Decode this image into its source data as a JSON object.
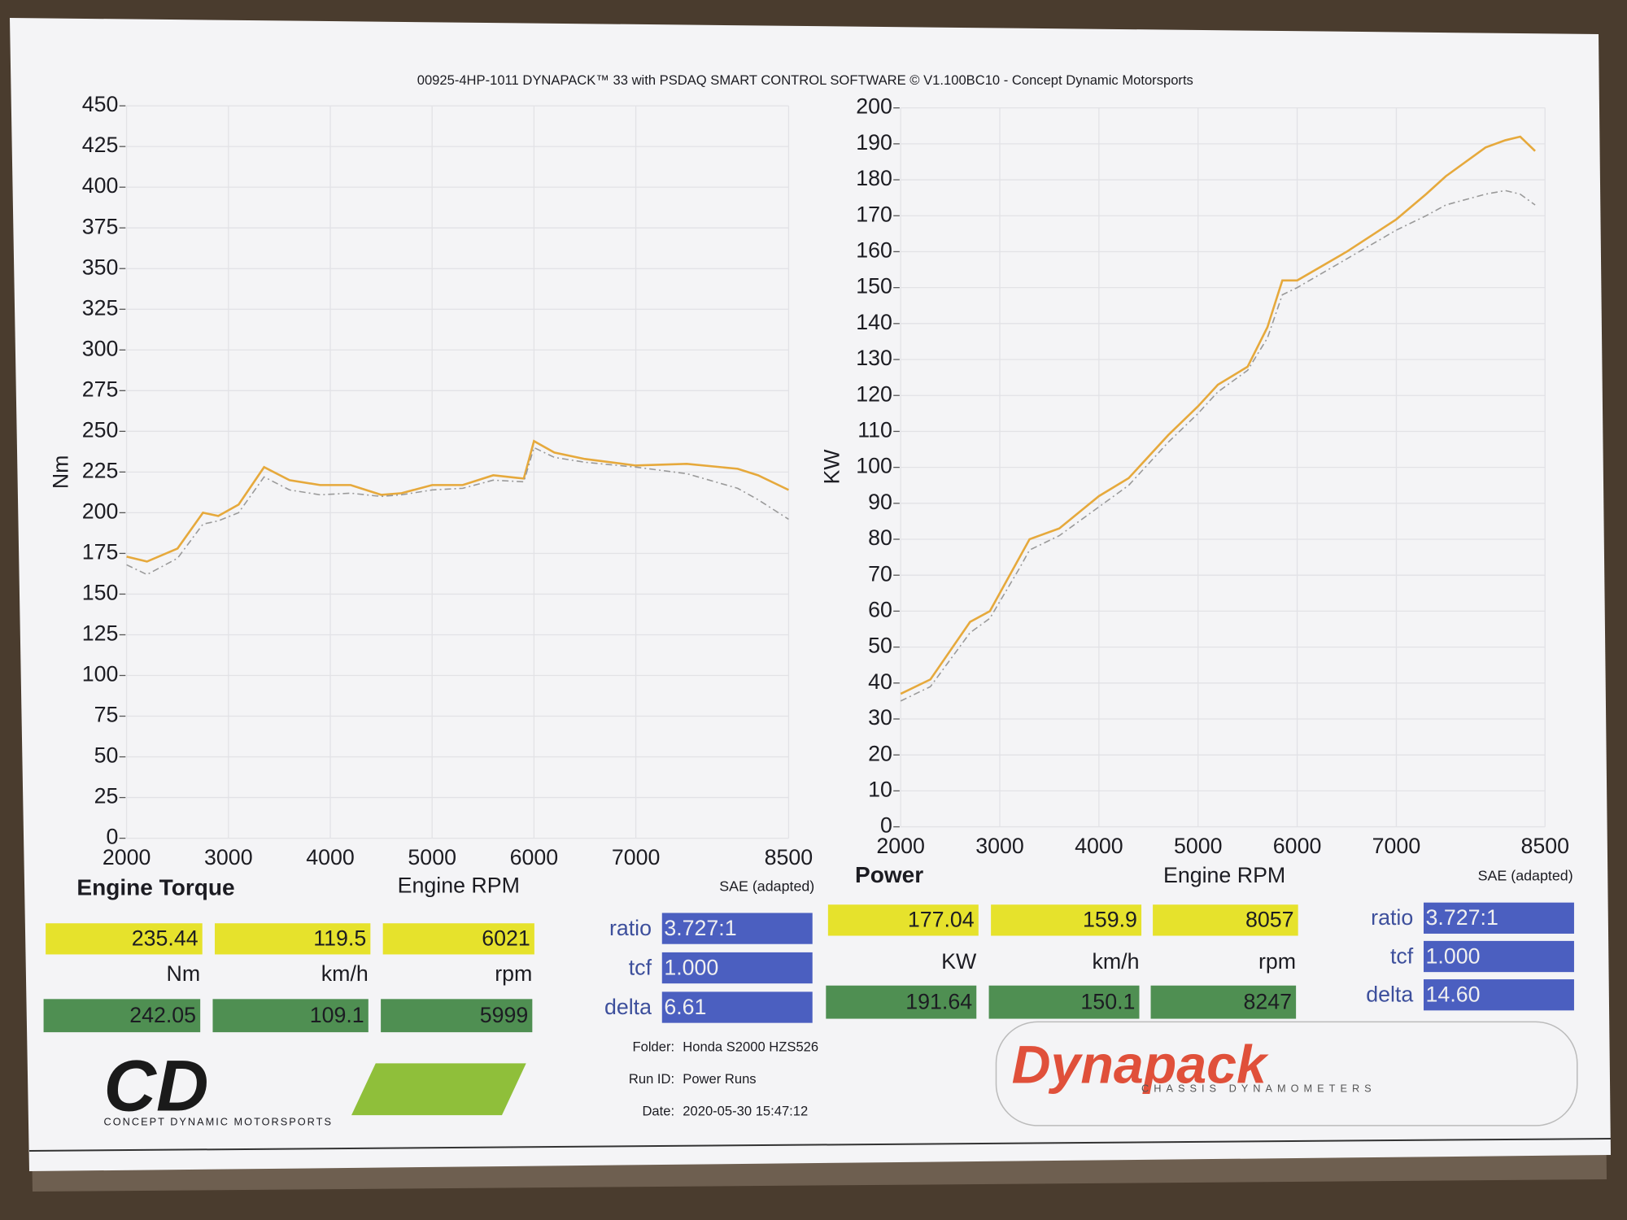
{
  "header": "00925-4HP-1011 DYNAPACK™ 33 with PSDAQ SMART CONTROL SOFTWARE © V1.100BC10 - Concept Dynamic Motorsports",
  "chart_data": [
    {
      "type": "line",
      "title": "Engine Torque",
      "x_label": "Engine RPM",
      "y_label": "Nm",
      "annotation": "SAE (adapted)",
      "xlim": [
        2000,
        8500
      ],
      "xticks": [
        2000,
        3000,
        4000,
        5000,
        6000,
        7000,
        8500
      ],
      "ylim": [
        0,
        450
      ],
      "yticks": [
        0,
        25,
        50,
        75,
        100,
        125,
        150,
        175,
        200,
        225,
        250,
        275,
        300,
        325,
        350,
        375,
        400,
        425,
        450
      ],
      "grid": true,
      "x": [
        2000,
        2200,
        2500,
        2750,
        2900,
        3100,
        3350,
        3600,
        3900,
        4200,
        4500,
        4700,
        5000,
        5300,
        5600,
        5900,
        6000,
        6200,
        6500,
        7000,
        7500,
        8000,
        8200,
        8500
      ],
      "series": [
        {
          "color": "#e6a93c",
          "dashed": false,
          "values": [
            173,
            170,
            178,
            200,
            198,
            205,
            228,
            220,
            217,
            217,
            211,
            212,
            217,
            217,
            223,
            221,
            244,
            237,
            233,
            229,
            230,
            227,
            223,
            214
          ]
        },
        {
          "color": "#9a9a9a",
          "dashed": true,
          "values": [
            168,
            162,
            172,
            193,
            195,
            200,
            222,
            214,
            211,
            212,
            210,
            211,
            214,
            215,
            220,
            219,
            240,
            234,
            231,
            228,
            224,
            215,
            208,
            196
          ]
        }
      ]
    },
    {
      "type": "line",
      "title": "Power",
      "x_label": "Engine RPM",
      "y_label": "KW",
      "annotation": "SAE (adapted)",
      "xlim": [
        2000,
        8500
      ],
      "xticks": [
        2000,
        3000,
        4000,
        5000,
        6000,
        7000,
        8500
      ],
      "ylim": [
        0,
        200
      ],
      "yticks": [
        0,
        10,
        20,
        30,
        40,
        50,
        60,
        70,
        80,
        90,
        100,
        110,
        120,
        130,
        140,
        150,
        160,
        170,
        180,
        190,
        200
      ],
      "grid": true,
      "x": [
        2000,
        2300,
        2700,
        2900,
        3200,
        3300,
        3600,
        4000,
        4300,
        4700,
        5000,
        5200,
        5500,
        5700,
        5850,
        6000,
        6500,
        7000,
        7300,
        7500,
        7900,
        8100,
        8250,
        8400
      ],
      "series": [
        {
          "color": "#e6a93c",
          "dashed": false,
          "values": [
            37,
            41,
            57,
            60,
            75,
            80,
            83,
            92,
            97,
            109,
            117,
            123,
            128,
            139,
            152,
            152,
            160,
            169,
            176,
            181,
            189,
            191,
            192,
            188
          ]
        },
        {
          "color": "#9a9a9a",
          "dashed": true,
          "values": [
            35,
            39,
            54,
            58,
            72,
            77,
            81,
            89,
            95,
            107,
            115,
            121,
            127,
            136,
            148,
            150,
            158,
            166,
            170,
            173,
            176,
            177,
            176,
            173
          ]
        }
      ]
    }
  ],
  "readouts": [
    {
      "primary": [
        "235.44",
        "119.5",
        "6021"
      ],
      "units": [
        "Nm",
        "km/h",
        "rpm"
      ],
      "secondary": [
        "242.05",
        "109.1",
        "5999"
      ],
      "settings": [
        {
          "label": "ratio",
          "value": "3.727:1"
        },
        {
          "label": "tcf",
          "value": "1.000"
        },
        {
          "label": "delta",
          "value": "6.61"
        }
      ]
    },
    {
      "primary": [
        "177.04",
        "159.9",
        "8057"
      ],
      "units": [
        "KW",
        "km/h",
        "rpm"
      ],
      "secondary": [
        "191.64",
        "150.1",
        "8247"
      ],
      "settings": [
        {
          "label": "ratio",
          "value": "3.727:1"
        },
        {
          "label": "tcf",
          "value": "1.000"
        },
        {
          "label": "delta",
          "value": "14.60"
        }
      ]
    }
  ],
  "run_info": [
    {
      "label": "Folder:",
      "value": "Honda S2000 HZS526"
    },
    {
      "label": "Run ID:",
      "value": "Power Runs"
    },
    {
      "label": "Date:",
      "value": "2020-05-30 15:47:12"
    }
  ],
  "logos": {
    "cd": "CD",
    "cd_sub": "CONCEPT DYNAMIC MOTORSPORTS",
    "dynapack": "Dynapack",
    "dynapack_sub": "CHASSIS DYNAMOMETERS"
  }
}
